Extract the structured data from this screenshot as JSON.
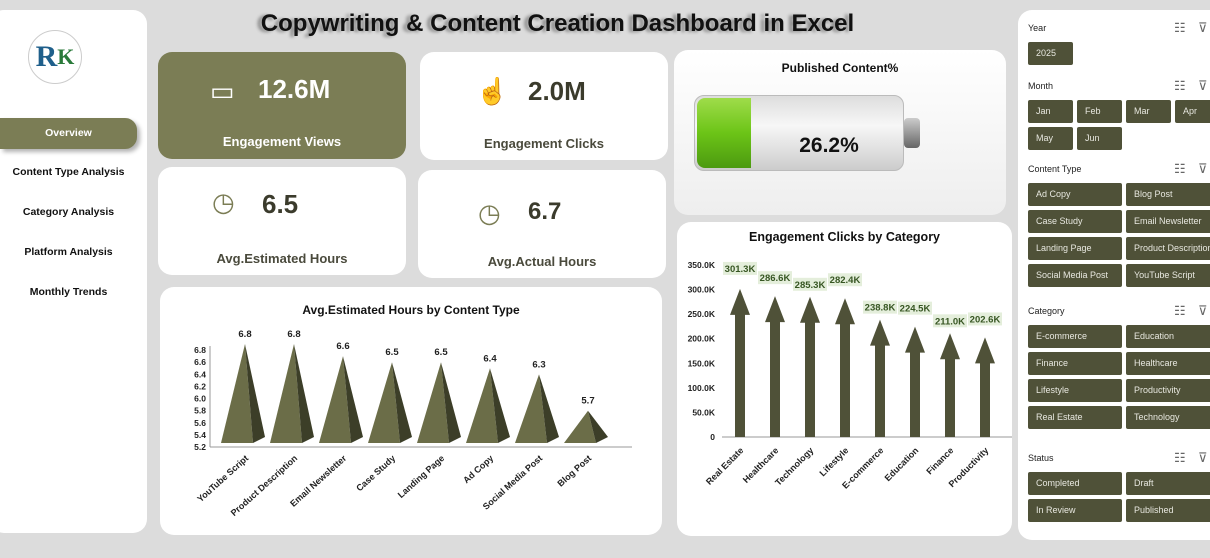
{
  "title": "Copywriting & Content Creation Dashboard in Excel",
  "sidebar": {
    "logo_text": "RK",
    "items": [
      {
        "label": "Overview"
      },
      {
        "label": "Content Type Analysis"
      },
      {
        "label": "Category Analysis"
      },
      {
        "label": "Platform Analysis"
      },
      {
        "label": "Monthly Trends"
      }
    ]
  },
  "kpis": [
    {
      "value": "12.6M",
      "label": "Engagement Views",
      "icon": "audience-icon"
    },
    {
      "value": "2.0M",
      "label": "Engagement Clicks",
      "icon": "pointer-hand-icon"
    },
    {
      "value": "6.5",
      "label": "Avg.Estimated Hours",
      "icon": "clock-icon"
    },
    {
      "value": "6.7",
      "label": "Avg.Actual Hours",
      "icon": "clock-icon"
    }
  ],
  "published": {
    "title": "Published Content%",
    "value": "26.2%",
    "fraction": 0.262
  },
  "colors": {
    "olive": "#7b7d55",
    "slicer": "#4f5138",
    "chart": "#5b5d3d",
    "label_bg": "#e4eedb",
    "label_text": "#375623"
  },
  "slicers": [
    {
      "title": "Year",
      "items": [
        "2025"
      ]
    },
    {
      "title": "Month",
      "items": [
        "Jan",
        "Feb",
        "Mar",
        "Apr",
        "May",
        "Jun"
      ]
    },
    {
      "title": "Content Type",
      "items": [
        "Ad Copy",
        "Blog Post",
        "Case Study",
        "Email Newsletter",
        "Landing Page",
        "Product Description",
        "Social Media Post",
        "YouTube Script"
      ]
    },
    {
      "title": "Category",
      "items": [
        "E-commerce",
        "Education",
        "Finance",
        "Healthcare",
        "Lifestyle",
        "Productivity",
        "Real Estate",
        "Technology"
      ]
    },
    {
      "title": "Status",
      "items": [
        "Completed",
        "Draft",
        "In Review",
        "Published"
      ]
    }
  ],
  "chart_data": [
    {
      "type": "bar",
      "title": "Avg.Estimated Hours by Content Type",
      "categories": [
        "YouTube Script",
        "Product Description",
        "Email Newsletter",
        "Case Study",
        "Landing Page",
        "Ad Copy",
        "Social Media Post",
        "Blog Post"
      ],
      "values": [
        6.8,
        6.8,
        6.6,
        6.5,
        6.5,
        6.4,
        6.3,
        5.7
      ],
      "value_labels": [
        "6.8",
        "6.8",
        "6.6",
        "6.5",
        "6.5",
        "6.4",
        "6.3",
        "5.7"
      ],
      "ylim": [
        5.2,
        6.8
      ],
      "yticks": [
        "5.2",
        "5.4",
        "5.6",
        "5.8",
        "6.0",
        "6.2",
        "6.4",
        "6.6",
        "6.8"
      ],
      "grid": false
    },
    {
      "type": "bar",
      "title": "Engagement Clicks by Category",
      "categories": [
        "Real Estate",
        "Healthcare",
        "Technology",
        "Lifestyle",
        "E-commerce",
        "Education",
        "Finance",
        "Productivity"
      ],
      "values": [
        301.3,
        286.6,
        285.3,
        282.4,
        238.8,
        224.5,
        211.0,
        202.6
      ],
      "value_labels": [
        "301.3K",
        "286.6K",
        "285.3K",
        "282.4K",
        "238.8K",
        "224.5K",
        "211.0K",
        "202.6K"
      ],
      "ylim": [
        0,
        350
      ],
      "yticks": [
        "0",
        "50.0K",
        "100.0K",
        "150.0K",
        "200.0K",
        "250.0K",
        "300.0K",
        "350.0K"
      ],
      "grid": false
    }
  ]
}
